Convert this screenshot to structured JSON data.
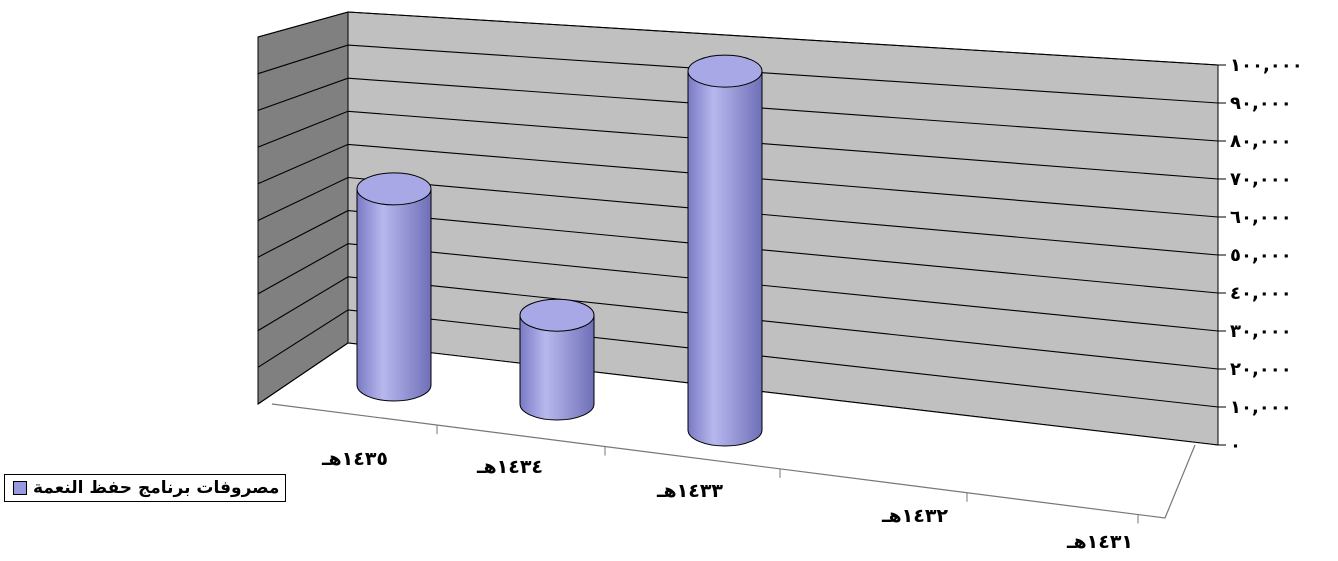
{
  "chart_data": {
    "type": "bar",
    "style": "3d-cylinder",
    "categories": [
      "١٤٣١هـ",
      "١٤٣٢هـ",
      "١٤٣٣هـ",
      "١٤٣٤هـ",
      "١٤٣٥هـ"
    ],
    "series": [
      {
        "name": "مصروفات برنامج حفظ النعمة",
        "values": [
          0,
          0,
          97000,
          24000,
          53000
        ],
        "color": "#9999dd"
      }
    ],
    "y_ticks": [
      0,
      10000,
      20000,
      30000,
      40000,
      50000,
      60000,
      70000,
      80000,
      90000,
      100000
    ],
    "y_tick_labels": [
      "٠",
      "١٠,٠٠٠",
      "٢٠,٠٠٠",
      "٣٠,٠٠٠",
      "٤٠,٠٠٠",
      "٥٠,٠٠٠",
      "٦٠,٠٠٠",
      "٧٠,٠٠٠",
      "٨٠,٠٠٠",
      "٩٠,٠٠٠",
      "١٠٠,٠٠٠"
    ],
    "ylim": [
      0,
      100000
    ],
    "grid": true,
    "legend_position": "bottom-left",
    "colors": {
      "wall": "#c0c0c0",
      "side_wall": "#808080",
      "bar": "#9999dd",
      "grid": "#000000"
    }
  }
}
